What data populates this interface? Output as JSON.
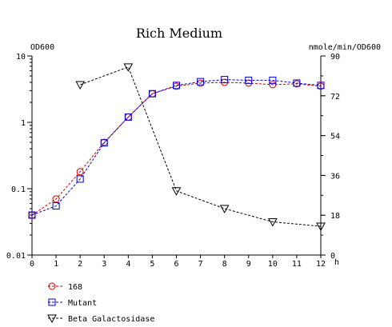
{
  "chart_data": {
    "type": "line",
    "title": "Rich Medium",
    "x_unit_label": "h",
    "left_axis_label": "OD600",
    "right_axis_label": "nmole/min/OD600",
    "x_range": [
      0,
      12
    ],
    "x_ticks": [
      0,
      1,
      2,
      3,
      4,
      5,
      6,
      7,
      8,
      9,
      10,
      11,
      12
    ],
    "left_scale": "log",
    "left_range": [
      0.01,
      10
    ],
    "left_ticks": [
      {
        "value": 0.01,
        "label": "0.01"
      },
      {
        "value": 0.1,
        "label": "0.1"
      },
      {
        "value": 1,
        "label": "1"
      },
      {
        "value": 10,
        "label": "10"
      }
    ],
    "right_scale": "linear",
    "right_range": [
      0,
      90
    ],
    "right_ticks": [
      0,
      18,
      36,
      54,
      72,
      90
    ],
    "grid": false,
    "legend_position": "bottom-left",
    "series": [
      {
        "name": "168",
        "axis": "left",
        "marker": "circle",
        "color": "#cc0000",
        "label_color": "#cc0000",
        "x": [
          0,
          1,
          2,
          3,
          4,
          5,
          6,
          7,
          8,
          9,
          10,
          11,
          12
        ],
        "y": [
          0.04,
          0.07,
          0.18,
          0.5,
          1.2,
          2.7,
          3.5,
          3.9,
          4.0,
          3.9,
          3.7,
          3.8,
          3.5
        ]
      },
      {
        "name": "Mutant",
        "axis": "left",
        "marker": "square",
        "color": "#0000cc",
        "label_color": "#0000cc",
        "x": [
          0,
          1,
          2,
          3,
          4,
          5,
          6,
          7,
          8,
          9,
          10,
          11,
          12
        ],
        "y": [
          0.04,
          0.055,
          0.14,
          0.49,
          1.2,
          2.7,
          3.6,
          4.1,
          4.4,
          4.3,
          4.3,
          3.9,
          3.6
        ]
      },
      {
        "name": "Beta Galactosidase",
        "axis": "right",
        "marker": "triangle-down",
        "color": "#000000",
        "label_color": "#000000",
        "x": [
          2,
          4,
          6,
          8,
          10,
          12
        ],
        "y": [
          77,
          85,
          29,
          21,
          15,
          13
        ]
      }
    ]
  }
}
